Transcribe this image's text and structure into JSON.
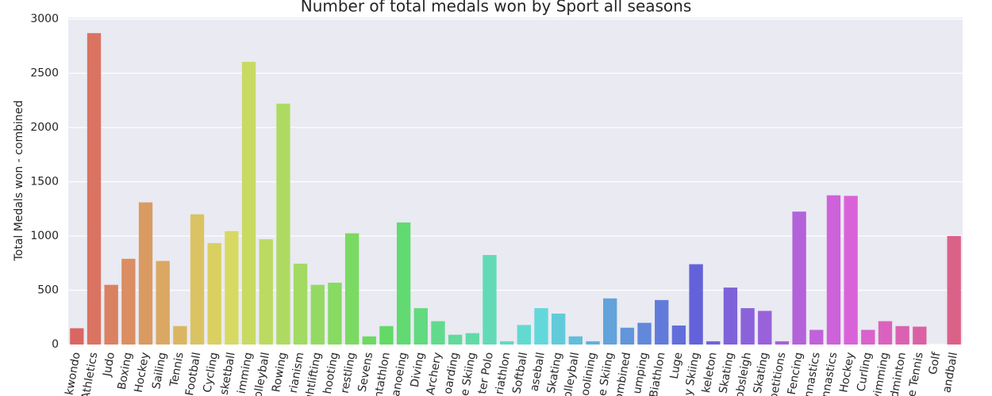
{
  "chart_data": {
    "type": "bar",
    "title": "Number of total medals won by Sport all seasons",
    "y_label": "Total Medals won - combined",
    "categories": [
      "kwondo",
      "Athletics",
      "Judo",
      "Boxing",
      "Hockey",
      "Sailing",
      "Tennis",
      "Football",
      "Cycling",
      "sketball",
      "imming",
      "olleyball",
      "Rowing",
      "rianism",
      "ghtlifting",
      "hooting",
      "restling",
      "Sevens",
      "ntathlon",
      "anoeing",
      "Diving",
      "Archery",
      "oarding",
      "e Skiing",
      "ter Polo",
      "riathlon",
      "Softball",
      "aseball",
      "Skating",
      "olleyball",
      "oolining",
      "e Skiing",
      "ombined",
      "umping",
      "Biathlon",
      "Luge",
      "y Skiing",
      "keleton",
      "Skating",
      "obsleigh",
      "Skating",
      "petitions",
      "Fencing",
      "nnastics",
      "nnastics",
      "Hockey",
      "Curling",
      "vimming",
      "dminton",
      "e Tennis",
      "Golf",
      "andball"
    ],
    "values": [
      150,
      2870,
      550,
      790,
      1310,
      770,
      170,
      1200,
      935,
      1045,
      2605,
      970,
      2220,
      745,
      550,
      570,
      1025,
      75,
      170,
      1125,
      335,
      215,
      90,
      105,
      825,
      30,
      180,
      335,
      285,
      75,
      30,
      425,
      155,
      200,
      410,
      175,
      740,
      30,
      525,
      335,
      310,
      30,
      1225,
      135,
      1375,
      1370,
      135,
      215,
      170,
      165,
      0,
      1000
    ],
    "palette": "husl",
    "ylim": [
      0,
      3000
    ],
    "yticks": [
      0,
      500,
      1000,
      1500,
      2000,
      2500,
      3000
    ],
    "grid": true
  }
}
